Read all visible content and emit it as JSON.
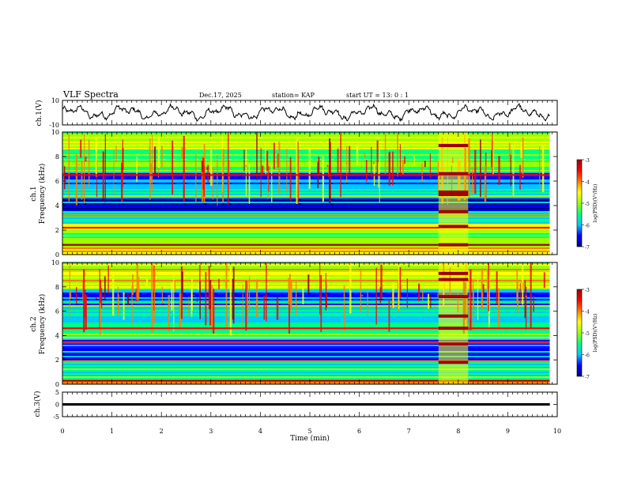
{
  "header": {
    "title": "VLF Spectra",
    "date": "Dec.17, 2025",
    "station": "station= KAP",
    "start": "start  UT  =   13: 0  : 1"
  },
  "colorbar": {
    "label": "log(PSD)(V²/Hz)",
    "ticks": [
      "-3",
      "-4",
      "-5",
      "-6",
      "-7"
    ],
    "min": -7,
    "max": -3,
    "colors": [
      "#000080",
      "#0000ff",
      "#00c8ff",
      "#00ff80",
      "#9cff00",
      "#ffff00",
      "#ff8000",
      "#ff0000",
      "#a00000"
    ]
  },
  "chart_data": [
    {
      "type": "line",
      "panel": "ch1-waveform",
      "ylabel": "ch.1(V)",
      "ylim": [
        -10,
        10
      ],
      "yticks": [
        "10",
        "-10"
      ],
      "xlim": [
        0,
        10
      ],
      "description_values": "noisy waveform oscillating roughly between -6 and 6 V"
    },
    {
      "type": "heatmap",
      "panel": "ch1-spectrogram",
      "ylabel_line1": "ch.1",
      "ylabel_line2": "Frequency (kHz)",
      "ylim": [
        0,
        10
      ],
      "yticks": [
        "10",
        "8",
        "6",
        "4",
        "2",
        "0"
      ],
      "xlim": [
        0,
        10
      ],
      "bands": [
        {
          "f0": 0,
          "f1": 0.6,
          "level": -4.2
        },
        {
          "f0": 0.6,
          "f1": 1.8,
          "level": -5.2
        },
        {
          "f0": 1.8,
          "f1": 2.6,
          "level": -4.6
        },
        {
          "f0": 2.6,
          "f1": 3.6,
          "level": -5.6
        },
        {
          "f0": 3.6,
          "f1": 4.6,
          "level": -6.3
        },
        {
          "f0": 4.6,
          "f1": 5.4,
          "level": -5.5
        },
        {
          "f0": 5.4,
          "f1": 6.8,
          "level": -6.1
        },
        {
          "f0": 6.8,
          "f1": 8.6,
          "level": -5.2
        },
        {
          "f0": 8.6,
          "f1": 10,
          "level": -4.8
        }
      ],
      "lines": [
        {
          "f": 0.8,
          "level": -3.3
        },
        {
          "f": 2.2,
          "level": -3.6
        },
        {
          "f": 3.2,
          "level": -4.0
        },
        {
          "f": 6.5,
          "level": -3.8
        }
      ],
      "burst": {
        "t0": 7.6,
        "t1": 8.2,
        "lines": [
          0.8,
          2.3,
          3.5,
          4.9,
          5.1,
          6.6,
          8.9
        ]
      }
    },
    {
      "type": "heatmap",
      "panel": "ch2-spectrogram",
      "ylabel_line1": "ch.2",
      "ylabel_line2": "Frequency (kHz)",
      "ylim": [
        0,
        10
      ],
      "yticks": [
        "10",
        "8",
        "6",
        "4",
        "2",
        "0"
      ],
      "xlim": [
        0,
        10
      ],
      "bands": [
        {
          "f0": 0,
          "f1": 0.4,
          "level": -4.2
        },
        {
          "f0": 0.4,
          "f1": 1.6,
          "level": -5.4
        },
        {
          "f0": 1.6,
          "f1": 2.8,
          "level": -5.8
        },
        {
          "f0": 2.8,
          "f1": 3.8,
          "level": -6.2
        },
        {
          "f0": 3.8,
          "f1": 5.0,
          "level": -5.2
        },
        {
          "f0": 5.0,
          "f1": 6.6,
          "level": -5.6
        },
        {
          "f0": 6.6,
          "f1": 7.8,
          "level": -6.0
        },
        {
          "f0": 7.8,
          "f1": 10,
          "level": -4.7
        }
      ],
      "lines": [
        {
          "f": 0.3,
          "level": -3.3
        },
        {
          "f": 1.9,
          "level": -4.0
        },
        {
          "f": 3.4,
          "level": -3.8
        },
        {
          "f": 4.6,
          "level": -3.6
        }
      ],
      "burst": {
        "t0": 7.6,
        "t1": 8.2,
        "lines": [
          1.8,
          3.3,
          4.6,
          5.6,
          7.2,
          8.6,
          9.1
        ]
      }
    },
    {
      "type": "line",
      "panel": "ch3-waveform",
      "ylabel": "ch.3(V)",
      "ylim": [
        -5,
        5
      ],
      "yticks": [
        "5",
        "0",
        "-5"
      ],
      "xlim": [
        0,
        10
      ],
      "description_values": "flat trace near 0 V"
    }
  ],
  "xaxis": {
    "label": "Time  (min)",
    "ticks": [
      "0",
      "1",
      "2",
      "3",
      "4",
      "5",
      "6",
      "7",
      "8",
      "9",
      "10"
    ]
  }
}
